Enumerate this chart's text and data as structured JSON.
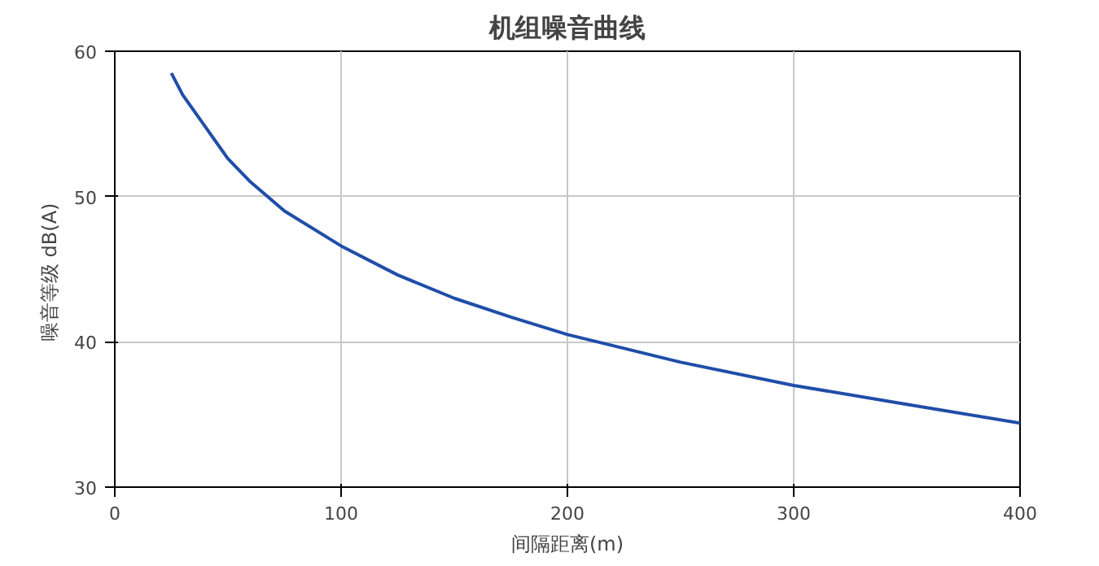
{
  "chart_data": {
    "type": "line",
    "title": "机组噪音曲线",
    "xlabel": "间隔距离(m)",
    "ylabel": "噪音等级  dB(A)",
    "x": [
      25,
      30,
      40,
      50,
      60,
      75,
      100,
      125,
      150,
      175,
      200,
      250,
      300,
      350,
      400
    ],
    "series": [
      {
        "color": "#1f4ea8",
        "values": [
          58.5,
          57.0,
          54.8,
          52.6,
          51.0,
          49.0,
          46.6,
          44.6,
          43.0,
          41.7,
          40.5,
          38.6,
          37.0,
          35.7,
          34.4
        ]
      }
    ],
    "xlim": [
      0,
      400
    ],
    "ylim": [
      30,
      60
    ],
    "xticks": [
      0,
      100,
      200,
      300,
      400
    ],
    "yticks": [
      30,
      40,
      50,
      60
    ],
    "grid": true,
    "marker": "none",
    "line_style": "solid"
  }
}
